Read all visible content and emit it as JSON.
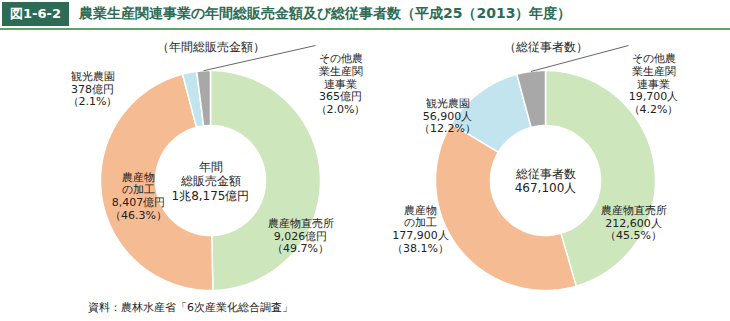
{
  "figure": {
    "number": "図1-6-2",
    "title": "農業生産関連事業の年間総販売金額及び総従事者数（平成25（2013）年度）",
    "source": "資料：農林水産省「6次産業化総合調査」"
  },
  "chart_data": [
    {
      "type": "pie",
      "subtitle": "（年間総販売金額）",
      "center_text": [
        "年間",
        "総販売金額",
        "1兆8,175億円"
      ],
      "categories": [
        "農産物直売所",
        "農産物の加工",
        "観光農園",
        "その他農業生産関連事業"
      ],
      "values": [
        49.7,
        46.3,
        2.1,
        2.0
      ],
      "value_labels": [
        "（49.7%）",
        "（46.3%）",
        "（2.1%）",
        "（2.0%）"
      ],
      "amount_labels": [
        "9,026億円",
        "8,407億円",
        "378億円",
        "365億円"
      ],
      "colors": [
        "#cde6bb",
        "#f5bb93",
        "#c2e4ee",
        "#a8a8a8"
      ],
      "data_labels": true
    },
    {
      "type": "pie",
      "subtitle": "（総従事者数）",
      "center_text": [
        "総従事者数",
        "467,100人"
      ],
      "categories": [
        "農産物直売所",
        "農産物の加工",
        "観光農園",
        "その他農業生産関連事業"
      ],
      "values": [
        45.5,
        38.1,
        12.2,
        4.2
      ],
      "value_labels": [
        "（45.5%）",
        "（38.1%）",
        "（12.2%）",
        "（4.2%）"
      ],
      "amount_labels": [
        "212,600人",
        "177,900人",
        "56,900人",
        "19,700人"
      ],
      "colors": [
        "#cde6bb",
        "#f5bb93",
        "#c2e4ee",
        "#a8a8a8"
      ],
      "data_labels": true
    }
  ]
}
